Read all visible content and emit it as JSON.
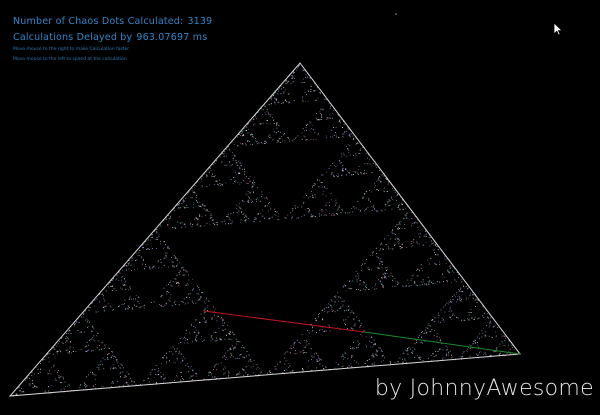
{
  "hud": {
    "count_label": "Number of Chaos Dots Calculated:",
    "count_value": "3139",
    "delay_label": "Calculations Delayed by",
    "delay_value": "963.07697 ms",
    "hint_faster": "Move mouse to the right to make Calculation faster",
    "hint_slower": "Move mouse to the left to speed at the calculation"
  },
  "signature": "by JohnnyAwesome",
  "sim": {
    "dot_count": 3139
  },
  "colors": {
    "background": "#000000",
    "hud_text": "#2f86c9",
    "triangle_outline": "#d8d8d8",
    "segment_old": "#c0141c",
    "segment_new": "#1f8a2a",
    "dot_palette": [
      "#ffffff",
      "#9ec7ff",
      "#c79bff",
      "#8fe3c0",
      "#ffb0c8"
    ]
  }
}
